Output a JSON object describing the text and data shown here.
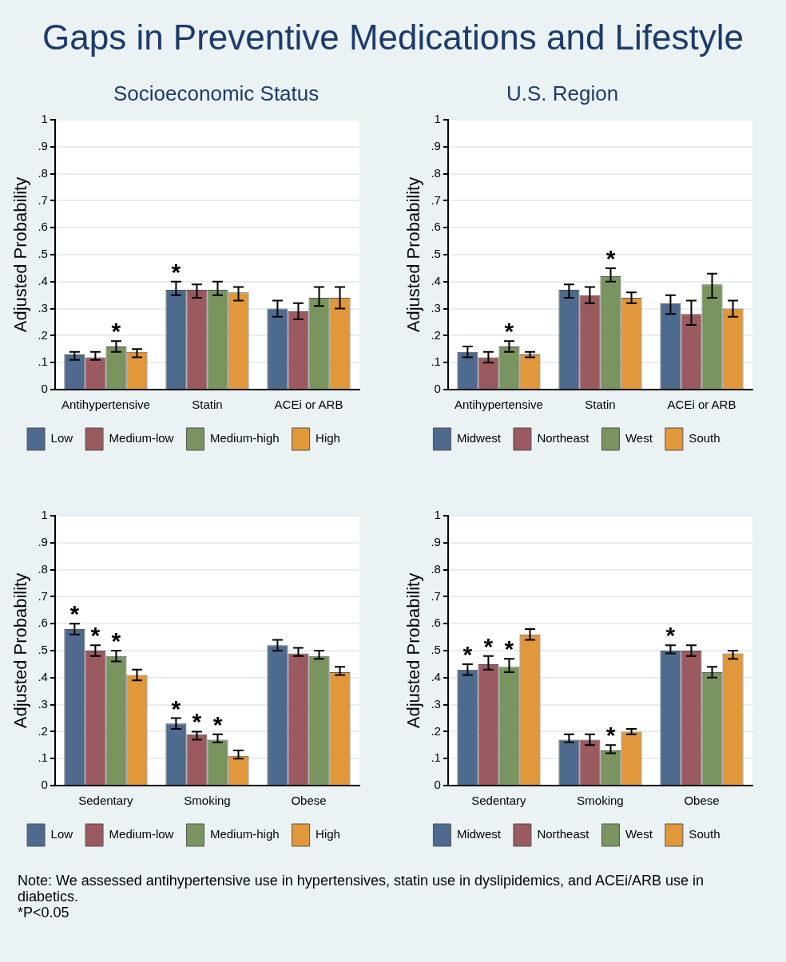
{
  "chart_data": [
    {
      "type": "bar",
      "title": "Gaps in Preventive Medications and Lifestyle",
      "subtitle": "Socioeconomic Status",
      "ylabel": "Adjusted Probability",
      "categories": [
        "Antihypertensive",
        "Statin",
        "ACEi or ARB"
      ],
      "series": [
        {
          "name": "Low",
          "color": "#4e6a8e",
          "values": [
            0.13,
            0.37,
            0.3
          ],
          "errors": [
            [
              0.11,
              0.14
            ],
            [
              0.35,
              0.4
            ],
            [
              0.27,
              0.33
            ]
          ],
          "value_labels": [
            null,
            "*",
            null
          ]
        },
        {
          "name": "Medium-low",
          "color": "#9a5a60",
          "values": [
            0.12,
            0.37,
            0.29
          ],
          "errors": [
            [
              0.11,
              0.14
            ],
            [
              0.34,
              0.39
            ],
            [
              0.26,
              0.32
            ]
          ],
          "value_labels": [
            null,
            null,
            null
          ]
        },
        {
          "name": "Medium-high",
          "color": "#7a9460",
          "values": [
            0.16,
            0.37,
            0.34
          ],
          "errors": [
            [
              0.14,
              0.18
            ],
            [
              0.35,
              0.4
            ],
            [
              0.31,
              0.38
            ]
          ],
          "value_labels": [
            "*",
            null,
            null
          ]
        },
        {
          "name": "High",
          "color": "#e0983a",
          "values": [
            0.14,
            0.36,
            0.34
          ],
          "errors": [
            [
              0.12,
              0.15
            ],
            [
              0.33,
              0.38
            ],
            [
              0.3,
              0.38
            ]
          ],
          "value_labels": [
            null,
            null,
            null
          ]
        }
      ],
      "ylim": [
        0,
        1
      ],
      "yticks": [
        {
          "value": 0,
          "label": "0"
        },
        {
          "value": 0.1,
          "label": ".1"
        },
        {
          "value": 0.2,
          "label": ".2"
        },
        {
          "value": 0.3,
          "label": ".3"
        },
        {
          "value": 0.4,
          "label": ".4"
        },
        {
          "value": 0.5,
          "label": ".5"
        },
        {
          "value": 0.6,
          "label": ".6"
        },
        {
          "value": 0.7,
          "label": ".7"
        },
        {
          "value": 0.8,
          "label": ".8"
        },
        {
          "value": 0.9,
          "label": ".9"
        },
        {
          "value": 1,
          "label": "1"
        }
      ],
      "grid": "y",
      "legend": "bottom",
      "annotations": [
        "Note: We assessed antihypertensive use in hypertensives, statin use in dyslipidemics, and ACEi/ARB use in diabetics.",
        "*P<0.05"
      ]
    },
    {
      "type": "bar",
      "subtitle": "U.S. Region",
      "ylabel": "Adjusted Probability",
      "categories": [
        "Antihypertensive",
        "Statin",
        "ACEi or ARB"
      ],
      "series": [
        {
          "name": "Midwest",
          "color": "#4e6a8e",
          "values": [
            0.14,
            0.37,
            0.32
          ],
          "errors": [
            [
              0.12,
              0.16
            ],
            [
              0.34,
              0.39
            ],
            [
              0.28,
              0.35
            ]
          ],
          "value_labels": [
            null,
            null,
            null
          ]
        },
        {
          "name": "Northeast",
          "color": "#9a5a60",
          "values": [
            0.12,
            0.35,
            0.28
          ],
          "errors": [
            [
              0.1,
              0.14
            ],
            [
              0.32,
              0.38
            ],
            [
              0.24,
              0.33
            ]
          ],
          "value_labels": [
            null,
            null,
            null
          ]
        },
        {
          "name": "West",
          "color": "#7a9460",
          "values": [
            0.16,
            0.42,
            0.39
          ],
          "errors": [
            [
              0.14,
              0.18
            ],
            [
              0.4,
              0.45
            ],
            [
              0.34,
              0.43
            ]
          ],
          "value_labels": [
            "*",
            "*",
            null
          ]
        },
        {
          "name": "South",
          "color": "#e0983a",
          "values": [
            0.13,
            0.34,
            0.3
          ],
          "errors": [
            [
              0.12,
              0.14
            ],
            [
              0.32,
              0.36
            ],
            [
              0.27,
              0.33
            ]
          ],
          "value_labels": [
            null,
            null,
            null
          ]
        }
      ],
      "ylim": [
        0,
        1
      ],
      "yticks": [
        {
          "value": 0,
          "label": "0"
        },
        {
          "value": 0.1,
          "label": ".1"
        },
        {
          "value": 0.2,
          "label": ".2"
        },
        {
          "value": 0.3,
          "label": ".3"
        },
        {
          "value": 0.4,
          "label": ".4"
        },
        {
          "value": 0.5,
          "label": ".5"
        },
        {
          "value": 0.6,
          "label": ".6"
        },
        {
          "value": 0.7,
          "label": ".7"
        },
        {
          "value": 0.8,
          "label": ".8"
        },
        {
          "value": 0.9,
          "label": ".9"
        },
        {
          "value": 1,
          "label": "1"
        }
      ],
      "grid": "y",
      "legend": "bottom"
    },
    {
      "type": "bar",
      "ylabel": "Adjusted Probability",
      "categories": [
        "Sedentary",
        "Smoking",
        "Obese"
      ],
      "series": [
        {
          "name": "Low",
          "color": "#4e6a8e",
          "values": [
            0.58,
            0.23,
            0.52
          ],
          "errors": [
            [
              0.56,
              0.6
            ],
            [
              0.21,
              0.25
            ],
            [
              0.5,
              0.54
            ]
          ],
          "value_labels": [
            "*",
            "*",
            null
          ]
        },
        {
          "name": "Medium-low",
          "color": "#9a5a60",
          "values": [
            0.5,
            0.19,
            0.49
          ],
          "errors": [
            [
              0.48,
              0.52
            ],
            [
              0.17,
              0.2
            ],
            [
              0.48,
              0.51
            ]
          ],
          "value_labels": [
            "*",
            "*",
            null
          ]
        },
        {
          "name": "Medium-high",
          "color": "#7a9460",
          "values": [
            0.48,
            0.17,
            0.48
          ],
          "errors": [
            [
              0.46,
              0.5
            ],
            [
              0.16,
              0.19
            ],
            [
              0.47,
              0.5
            ]
          ],
          "value_labels": [
            "*",
            "*",
            null
          ]
        },
        {
          "name": "High",
          "color": "#e0983a",
          "values": [
            0.41,
            0.11,
            0.42
          ],
          "errors": [
            [
              0.39,
              0.43
            ],
            [
              0.1,
              0.13
            ],
            [
              0.41,
              0.44
            ]
          ],
          "value_labels": [
            null,
            null,
            null
          ]
        }
      ],
      "ylim": [
        0,
        1
      ],
      "yticks": [
        {
          "value": 0,
          "label": "0"
        },
        {
          "value": 0.1,
          "label": ".1"
        },
        {
          "value": 0.2,
          "label": ".2"
        },
        {
          "value": 0.3,
          "label": ".3"
        },
        {
          "value": 0.4,
          "label": ".4"
        },
        {
          "value": 0.5,
          "label": ".5"
        },
        {
          "value": 0.6,
          "label": ".6"
        },
        {
          "value": 0.7,
          "label": ".7"
        },
        {
          "value": 0.8,
          "label": ".8"
        },
        {
          "value": 0.9,
          "label": ".9"
        },
        {
          "value": 1,
          "label": "1"
        }
      ],
      "grid": "y",
      "legend": "bottom"
    },
    {
      "type": "bar",
      "ylabel": "Adjusted Probability",
      "categories": [
        "Sedentary",
        "Smoking",
        "Obese"
      ],
      "series": [
        {
          "name": "Midwest",
          "color": "#4e6a8e",
          "values": [
            0.43,
            0.17,
            0.5
          ],
          "errors": [
            [
              0.41,
              0.45
            ],
            [
              0.16,
              0.19
            ],
            [
              0.49,
              0.52
            ]
          ],
          "value_labels": [
            "*",
            null,
            "*"
          ]
        },
        {
          "name": "Northeast",
          "color": "#9a5a60",
          "values": [
            0.45,
            0.17,
            0.5
          ],
          "errors": [
            [
              0.43,
              0.48
            ],
            [
              0.15,
              0.19
            ],
            [
              0.48,
              0.52
            ]
          ],
          "value_labels": [
            "*",
            null,
            null
          ]
        },
        {
          "name": "West",
          "color": "#7a9460",
          "values": [
            0.44,
            0.13,
            0.42
          ],
          "errors": [
            [
              0.42,
              0.47
            ],
            [
              0.12,
              0.15
            ],
            [
              0.4,
              0.44
            ]
          ],
          "value_labels": [
            "*",
            "*",
            null
          ]
        },
        {
          "name": "South",
          "color": "#e0983a",
          "values": [
            0.56,
            0.2,
            0.49
          ],
          "errors": [
            [
              0.54,
              0.58
            ],
            [
              0.19,
              0.21
            ],
            [
              0.47,
              0.5
            ]
          ],
          "value_labels": [
            null,
            null,
            null
          ]
        }
      ],
      "ylim": [
        0,
        1
      ],
      "yticks": [
        {
          "value": 0,
          "label": "0"
        },
        {
          "value": 0.1,
          "label": ".1"
        },
        {
          "value": 0.2,
          "label": ".2"
        },
        {
          "value": 0.3,
          "label": ".3"
        },
        {
          "value": 0.4,
          "label": ".4"
        },
        {
          "value": 0.5,
          "label": ".5"
        },
        {
          "value": 0.6,
          "label": ".6"
        },
        {
          "value": 0.7,
          "label": ".7"
        },
        {
          "value": 0.8,
          "label": ".8"
        },
        {
          "value": 0.9,
          "label": ".9"
        },
        {
          "value": 1,
          "label": "1"
        }
      ],
      "grid": "y",
      "legend": "bottom"
    }
  ]
}
